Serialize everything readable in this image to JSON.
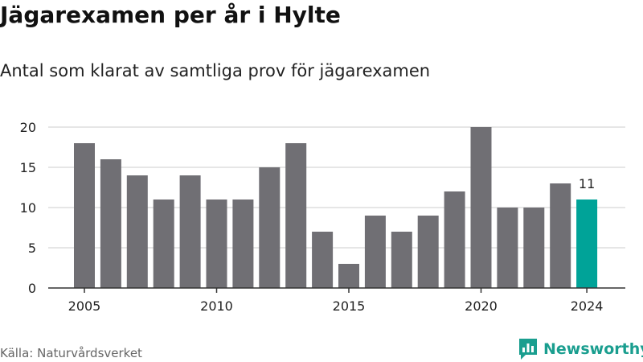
{
  "header": {
    "title": "Jägarexamen per år i Hylte",
    "subtitle": "Antal som klarat av samtliga prov för jägarexamen"
  },
  "footer": {
    "source": "Källa: Naturvårdsverket",
    "brand": "Newsworthy",
    "brand_icon": "newsworthy-logo-icon"
  },
  "colors": {
    "bar": "#706f74",
    "highlight": "#00a398",
    "grid": "#dddddd",
    "axis": "#333333",
    "brand": "#1a9e8f"
  },
  "chart_data": {
    "type": "bar",
    "title": "Jägarexamen per år i Hylte",
    "subtitle": "Antal som klarat av samtliga prov för jägarexamen",
    "xlabel": "",
    "ylabel": "",
    "categories": [
      2005,
      2006,
      2007,
      2008,
      2009,
      2010,
      2011,
      2012,
      2013,
      2014,
      2015,
      2016,
      2017,
      2018,
      2019,
      2020,
      2021,
      2022,
      2023,
      2024
    ],
    "values": [
      18,
      16,
      14,
      11,
      14,
      11,
      11,
      15,
      18,
      7,
      3,
      9,
      7,
      9,
      12,
      20,
      10,
      10,
      13,
      11
    ],
    "highlight_category": 2024,
    "data_labels": [
      {
        "category": 2024,
        "text": "11"
      }
    ],
    "x_ticks": [
      2005,
      2010,
      2015,
      2020,
      2024
    ],
    "y_ticks": [
      0,
      5,
      10,
      15,
      20
    ],
    "ylim": [
      0,
      20
    ],
    "grid": "horizontal",
    "legend": "none"
  }
}
